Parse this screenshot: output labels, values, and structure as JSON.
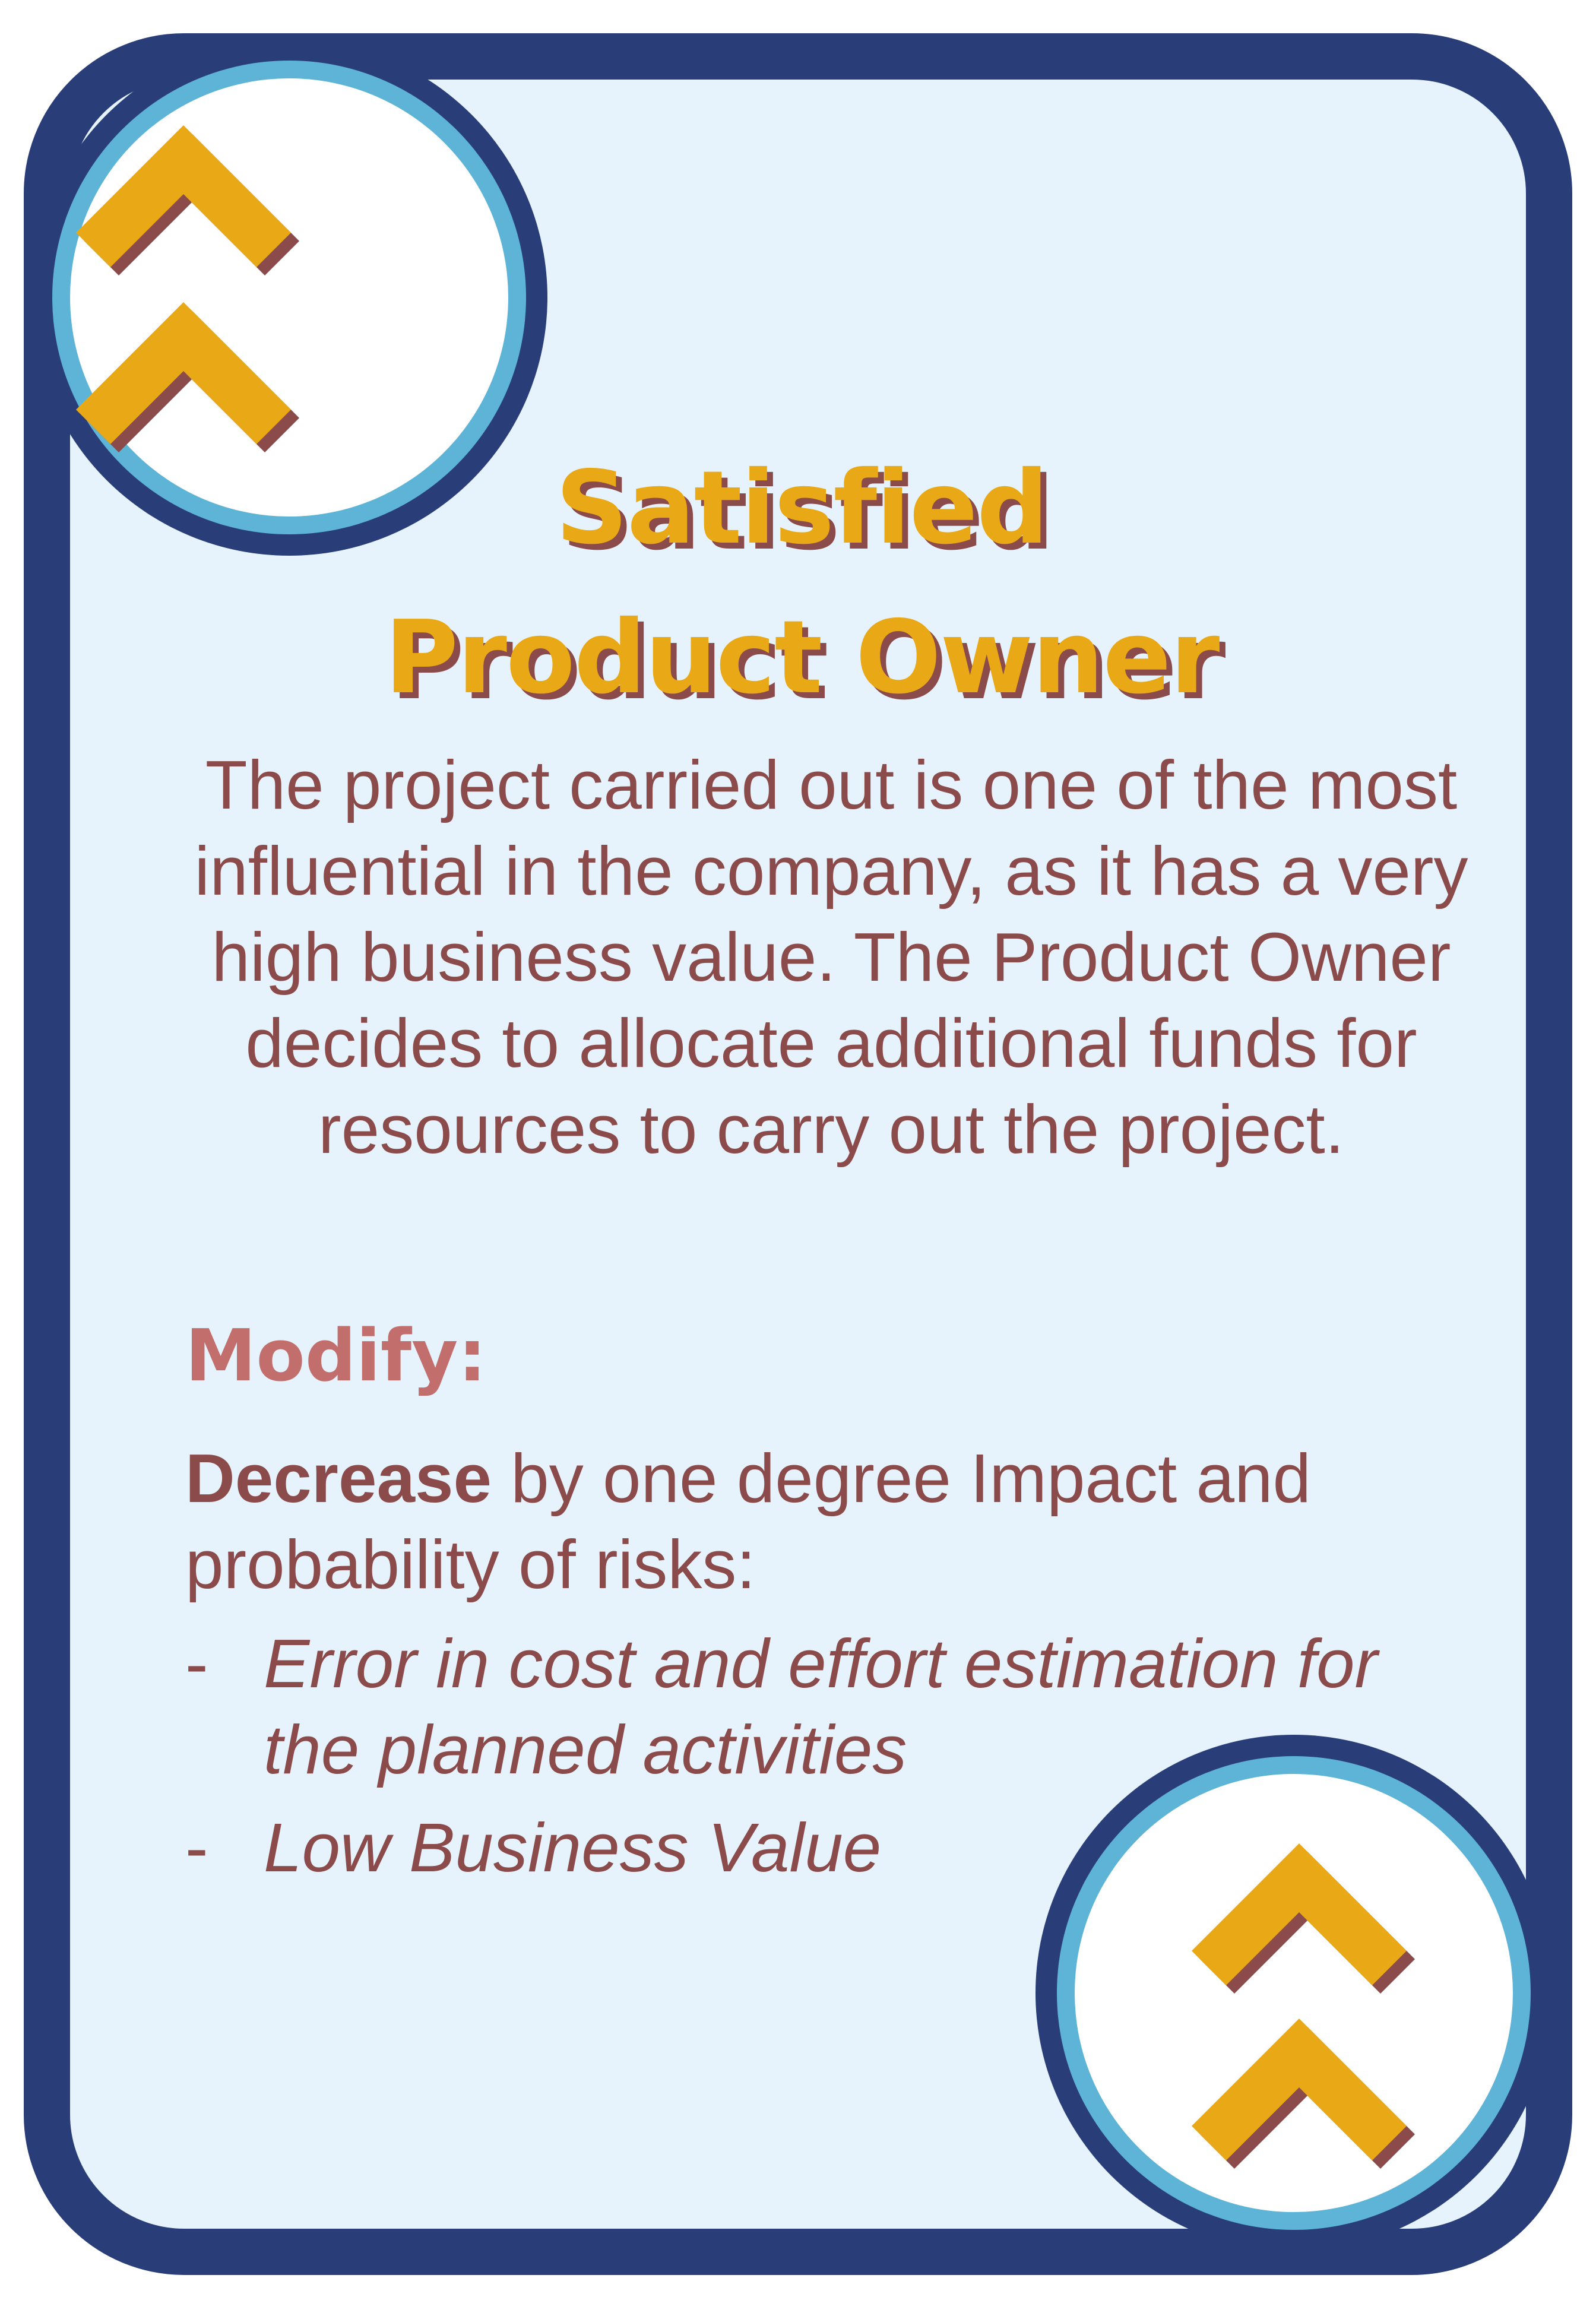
{
  "card": {
    "title_line1": "Satisfied",
    "title_line2": "Product Owner",
    "description": "The project carried out is one of the most influential in the company, as it has a very high business value. The Product Owner decides to allocate additional funds for resources to carry out the project.",
    "modify_heading": "Modify:",
    "modify_action": "Decrease",
    "modify_rest": " by one degree Impact and probability of risks:",
    "risks": [
      "Error in cost and effort estimation for the planned activities",
      "Low Business Value"
    ],
    "bullet": "-"
  },
  "icons": {
    "top_badge": "double-chevron-up-icon",
    "bottom_badge": "double-chevron-up-icon"
  },
  "colors": {
    "frame": "#293e78",
    "ring": "#5db4d6",
    "background": "#e6f3fc",
    "chevron": "#e9a815",
    "text": "#8b4b4b",
    "heading": "#c26e6c"
  }
}
